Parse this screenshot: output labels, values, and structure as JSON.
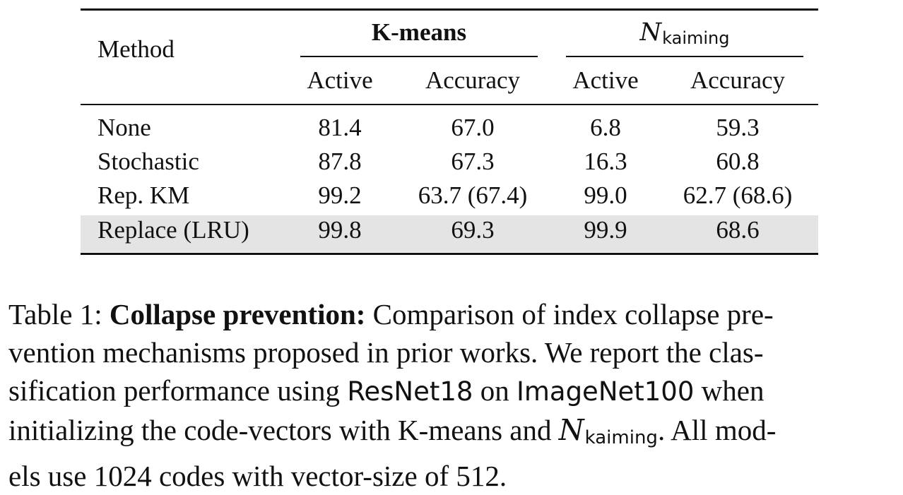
{
  "table": {
    "header": {
      "method": "Method",
      "group1": "K-means",
      "group2_symbol": "N",
      "group2_subscript": "kaiming",
      "sub_active": "Active",
      "sub_accuracy": "Accuracy"
    },
    "rows": [
      {
        "method": "None",
        "k_active": "81.4",
        "k_acc": "67.0",
        "n_active": "6.8",
        "n_acc": "59.3",
        "highlight": false
      },
      {
        "method": "Stochastic",
        "k_active": "87.8",
        "k_acc": "67.3",
        "n_active": "16.3",
        "n_acc": "60.8",
        "highlight": false
      },
      {
        "method": "Rep. KM",
        "k_active": "99.2",
        "k_acc": "63.7 (67.4)",
        "n_active": "99.0",
        "n_acc": "62.7 (68.6)",
        "highlight": false
      },
      {
        "method": "Replace (LRU)",
        "k_active": "99.8",
        "k_acc": "69.3",
        "n_active": "99.9",
        "n_acc": "68.6",
        "highlight": true
      }
    ],
    "highlight_color": "#e4e4e4"
  },
  "caption": {
    "label": "Table 1:",
    "bold_title": "Collapse prevention:",
    "line1_rest": "Comparison of index collapse pre-",
    "line2": "vention mechanisms proposed in prior works. We report the clas-",
    "line3_a": "sification performance using",
    "line3_model": "ResNet18",
    "line3_b": "on",
    "line3_dataset": "ImageNet100",
    "line3_c": "when",
    "line4_a": "initializing the code-vectors with K-means and",
    "line4_symbol": "N",
    "line4_subscript": "kaiming",
    "line4_b": ". All mod-",
    "line5": "els use 1024 codes with vector-size of 512."
  }
}
